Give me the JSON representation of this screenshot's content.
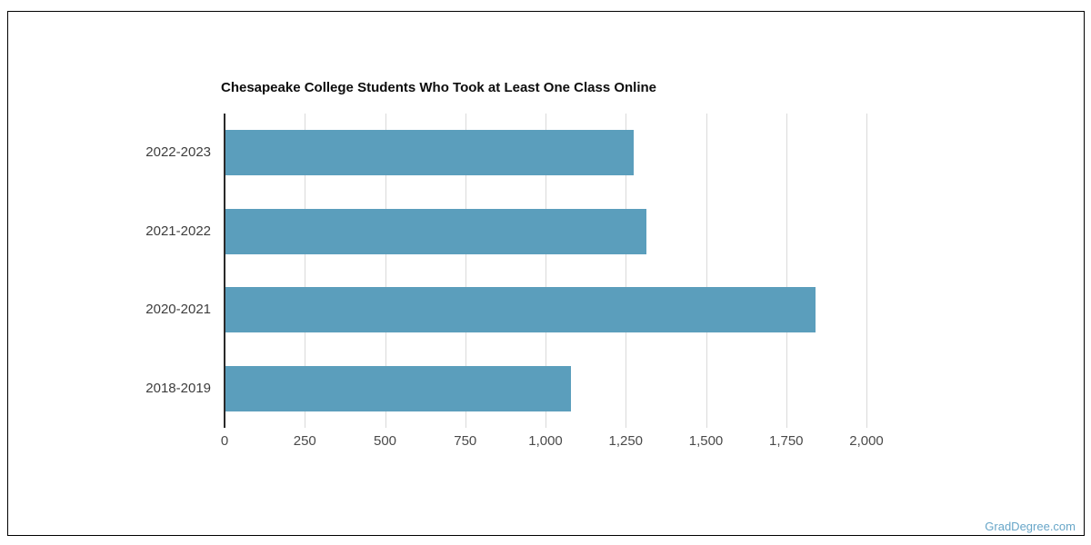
{
  "page": {
    "watermark": "GradDegree.com"
  },
  "chart_data": {
    "type": "bar",
    "orientation": "horizontal",
    "title": "Chesapeake College Students Who Took at Least One Class Online",
    "categories": [
      "2022-2023",
      "2021-2022",
      "2020-2021",
      "2018-2019"
    ],
    "values": [
      1275,
      1315,
      1841,
      1079
    ],
    "xlabel": "",
    "ylabel": "",
    "xlim": [
      0,
      2000
    ],
    "xticks": [
      0,
      250,
      500,
      750,
      1000,
      1250,
      1500,
      1750,
      2000
    ],
    "xtick_labels": [
      "0",
      "250",
      "500",
      "750",
      "1,000",
      "1,250",
      "1,500",
      "1,750",
      "2,000"
    ],
    "grid": "vertical-gridlines-on",
    "legend": "none",
    "bar_color": "#5B9EBC"
  },
  "colors": {
    "bar": "#5B9EBC",
    "grid": "#DADADA",
    "axis": "#2A2A2A",
    "tick_label": "#4A4A4A",
    "category_label": "#3D3D3D",
    "title": "#0D0D0D",
    "watermark": "#68A6C8",
    "frame_border": "#000000",
    "background": "#FFFFFF"
  }
}
